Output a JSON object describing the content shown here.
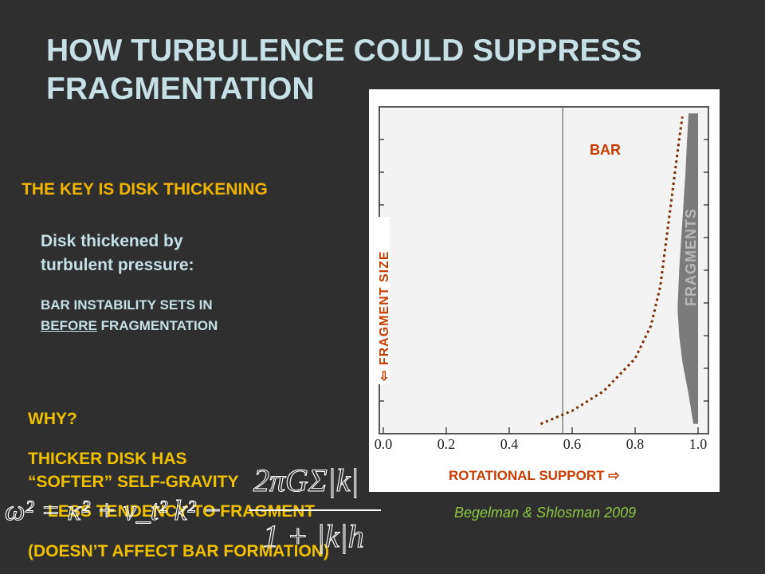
{
  "slide": {
    "title_line1": "HOW TURBULENCE COULD SUPPRESS",
    "title_line2": "FRAGMENTATION",
    "key_point": "THE KEY IS DISK THICKENING",
    "thickened_line1": "Disk thickened by",
    "thickened_line2": "turbulent pressure:",
    "bar_instability_line1": "BAR INSTABILITY SETS IN",
    "bar_instability_before": "BEFORE",
    "bar_instability_rest": " FRAGMENTATION",
    "why": "WHY?",
    "thicker_line1": "THICKER DISK HAS",
    "thicker_line2": "“SOFTER” SELF-GRAVITY",
    "less_tendency": "LESS TENDENCY TO FRAGMENT",
    "doesnt_affect": "(DOESN’T AFFECT BAR FORMATION)",
    "citation": "Begelman & Shlosman 2009"
  },
  "formula": {
    "lhs": "ω² = κ² + v_t² k² −",
    "numerator": "2πGΣ|k|",
    "denominator": "1 + |k|h"
  },
  "chart_data": {
    "type": "line",
    "x_ticks": [
      "0.0",
      "0.2",
      "0.4",
      "0.6",
      "0.8",
      "1.0"
    ],
    "xlim": [
      0,
      1
    ],
    "xlabel": "ROTATIONAL SUPPORT ⇨",
    "ylabel": "⇦ FRAGMENT  SIZE",
    "vertical_line_x": 0.57,
    "regions": [
      {
        "label": "BAR",
        "color": "#f2f2f2"
      },
      {
        "label": "FRAGMENTS",
        "color": "#7a7a7a"
      }
    ],
    "boundary_curve": [
      [
        0.5,
        0.03
      ],
      [
        0.6,
        0.07
      ],
      [
        0.7,
        0.13
      ],
      [
        0.8,
        0.23
      ],
      [
        0.85,
        0.33
      ],
      [
        0.88,
        0.45
      ],
      [
        0.9,
        0.6
      ],
      [
        0.92,
        0.75
      ],
      [
        0.94,
        0.9
      ],
      [
        0.95,
        0.97
      ]
    ],
    "fragments_edge": [
      [
        0.985,
        0.03
      ],
      [
        0.97,
        0.12
      ],
      [
        0.95,
        0.22
      ],
      [
        0.94,
        0.3
      ],
      [
        0.935,
        0.38
      ],
      [
        0.94,
        0.5
      ],
      [
        0.95,
        0.65
      ],
      [
        0.96,
        0.8
      ],
      [
        0.965,
        0.9
      ],
      [
        0.97,
        0.98
      ]
    ],
    "colors": {
      "label": "#c83c00",
      "curve": "#7a2a00",
      "axis": "#222222"
    }
  }
}
